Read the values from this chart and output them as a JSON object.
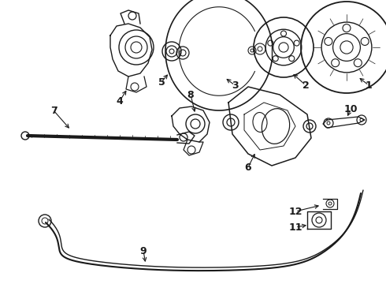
{
  "bg_color": "#ffffff",
  "lc": "#1a1a1a",
  "fig_w": 4.9,
  "fig_h": 3.6,
  "dpi": 100
}
